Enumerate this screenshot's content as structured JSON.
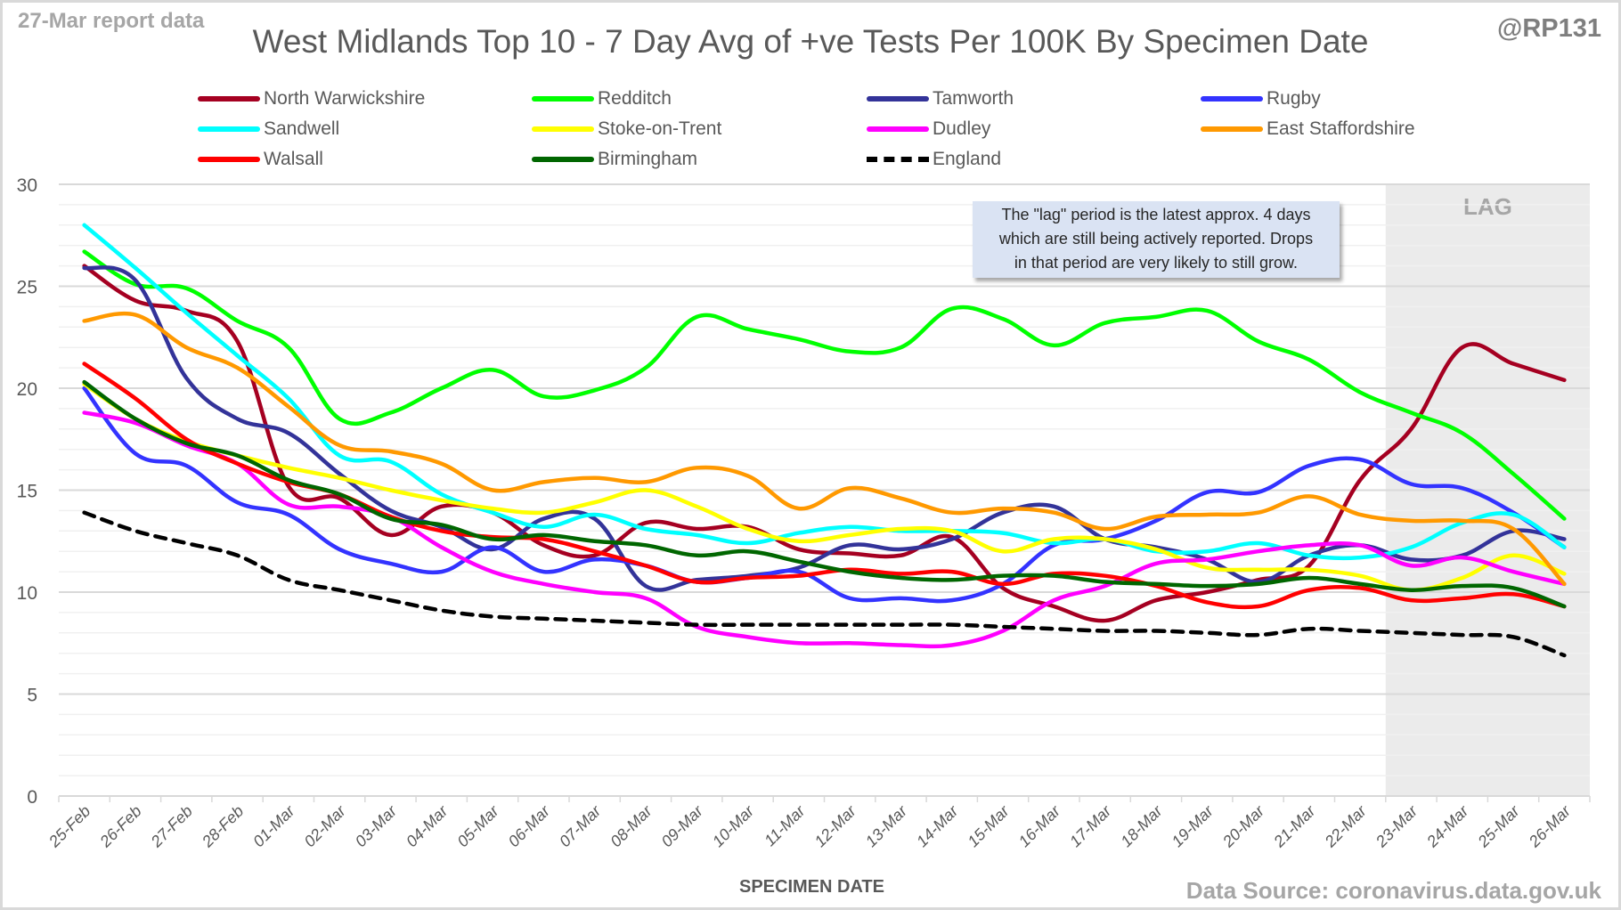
{
  "header": {
    "report_label": "27-Mar report data",
    "handle": "@RP131",
    "title": "West Midlands Top 10 - 7 Day Avg of +ve Tests Per 100K By Specimen Date"
  },
  "annotation": {
    "lines": [
      "The \"lag\" period is the latest approx. 4 days",
      "which are still being actively reported.  Drops",
      "in that period are very likely to still grow."
    ],
    "lag_label": "LAG"
  },
  "footer": {
    "source": "Data Source: coronavirus.data.gov.uk"
  },
  "chart_data": {
    "type": "line",
    "title": "West Midlands Top 10 - 7 Day Avg of +ve Tests Per 100K By Specimen Date",
    "xlabel": "SPECIMEN DATE",
    "ylabel": "",
    "ylim": [
      0,
      30
    ],
    "yticks": [
      0,
      5,
      10,
      15,
      20,
      25,
      30
    ],
    "grid": true,
    "legend_position": "top",
    "lag_period": {
      "start": "23-Mar",
      "end": "26-Mar",
      "label": "LAG"
    },
    "categories": [
      "25-Feb",
      "26-Feb",
      "27-Feb",
      "28-Feb",
      "01-Mar",
      "02-Mar",
      "03-Mar",
      "04-Mar",
      "05-Mar",
      "06-Mar",
      "07-Mar",
      "08-Mar",
      "09-Mar",
      "10-Mar",
      "11-Mar",
      "12-Mar",
      "13-Mar",
      "14-Mar",
      "15-Mar",
      "16-Mar",
      "17-Mar",
      "18-Mar",
      "19-Mar",
      "20-Mar",
      "21-Mar",
      "22-Mar",
      "23-Mar",
      "24-Mar",
      "25-Mar",
      "26-Mar"
    ],
    "series": [
      {
        "name": "North Warwickshire",
        "color": "#a50021",
        "dashed": false,
        "values": [
          26.0,
          24.3,
          23.8,
          22.3,
          15.2,
          14.6,
          12.8,
          14.2,
          13.9,
          12.3,
          11.8,
          13.4,
          13.1,
          13.2,
          12.1,
          11.9,
          11.8,
          12.7,
          10.2,
          9.3,
          8.6,
          9.6,
          10.0,
          10.6,
          11.3,
          15.5,
          18.0,
          22.0,
          21.2,
          20.4
        ]
      },
      {
        "name": "Redditch",
        "color": "#00ff00",
        "dashed": false,
        "values": [
          26.7,
          25.1,
          24.9,
          23.3,
          22.0,
          18.5,
          18.8,
          20.0,
          20.9,
          19.6,
          19.9,
          21.0,
          23.5,
          22.9,
          22.4,
          21.8,
          22.0,
          23.9,
          23.4,
          22.1,
          23.2,
          23.5,
          23.8,
          22.3,
          21.4,
          19.8,
          18.8,
          17.8,
          15.8,
          13.6
        ]
      },
      {
        "name": "Tamworth",
        "color": "#333399",
        "dashed": false,
        "values": [
          25.9,
          25.3,
          20.5,
          18.5,
          17.8,
          15.8,
          14.0,
          13.2,
          12.1,
          13.6,
          13.6,
          10.3,
          10.6,
          10.8,
          11.2,
          12.3,
          12.1,
          12.6,
          13.9,
          14.2,
          12.6,
          12.2,
          11.6,
          10.5,
          11.8,
          12.3,
          11.6,
          11.8,
          13.0,
          12.6
        ]
      },
      {
        "name": "Rugby",
        "color": "#3333ff",
        "dashed": false,
        "values": [
          20.0,
          16.8,
          16.2,
          14.4,
          13.8,
          12.1,
          11.4,
          11.0,
          12.2,
          11.0,
          11.6,
          11.3,
          10.5,
          10.7,
          11.0,
          9.7,
          9.7,
          9.6,
          10.4,
          12.3,
          12.6,
          13.5,
          14.9,
          14.9,
          16.2,
          16.5,
          15.3,
          15.1,
          13.9,
          12.2
        ]
      },
      {
        "name": "Sandwell",
        "color": "#00ffff",
        "dashed": false,
        "values": [
          28.0,
          25.9,
          23.7,
          21.6,
          19.5,
          16.7,
          16.4,
          14.8,
          13.9,
          13.2,
          13.8,
          13.1,
          12.8,
          12.4,
          12.9,
          13.2,
          13.0,
          13.0,
          12.9,
          12.4,
          12.6,
          12.0,
          12.0,
          12.4,
          11.8,
          11.7,
          12.2,
          13.4,
          13.8,
          12.2
        ]
      },
      {
        "name": "Stoke-on-Trent",
        "color": "#ffff00",
        "dashed": false,
        "values": [
          20.2,
          18.5,
          17.4,
          16.7,
          16.1,
          15.6,
          15.0,
          14.5,
          14.1,
          13.9,
          14.4,
          15.0,
          14.2,
          13.1,
          12.5,
          12.8,
          13.1,
          13.0,
          12.0,
          12.6,
          12.6,
          12.1,
          11.2,
          11.1,
          11.1,
          10.8,
          10.1,
          10.7,
          11.8,
          10.9
        ]
      },
      {
        "name": "Dudley",
        "color": "#ff00ff",
        "dashed": false,
        "values": [
          18.8,
          18.3,
          17.2,
          16.3,
          14.3,
          14.2,
          13.7,
          12.2,
          11.0,
          10.4,
          10.0,
          9.7,
          8.3,
          7.8,
          7.5,
          7.5,
          7.4,
          7.4,
          8.1,
          9.6,
          10.3,
          11.4,
          11.6,
          12.0,
          12.3,
          12.3,
          11.3,
          11.7,
          11.0,
          10.4
        ]
      },
      {
        "name": "East Staffordshire",
        "color": "#ff9900",
        "dashed": false,
        "values": [
          23.3,
          23.6,
          22.0,
          21.0,
          19.1,
          17.2,
          16.9,
          16.3,
          15.0,
          15.4,
          15.6,
          15.4,
          16.1,
          15.7,
          14.1,
          15.1,
          14.6,
          13.9,
          14.1,
          13.9,
          13.1,
          13.7,
          13.8,
          13.9,
          14.7,
          13.8,
          13.5,
          13.5,
          13.1,
          10.4
        ]
      },
      {
        "name": "Walsall",
        "color": "#ff0000",
        "dashed": false,
        "values": [
          21.2,
          19.5,
          17.5,
          16.3,
          15.4,
          14.8,
          13.7,
          13.0,
          12.7,
          12.6,
          12.0,
          11.3,
          10.5,
          10.7,
          10.8,
          11.1,
          10.9,
          11.0,
          10.4,
          10.9,
          10.8,
          10.3,
          9.5,
          9.3,
          10.1,
          10.2,
          9.6,
          9.7,
          9.9,
          9.3
        ]
      },
      {
        "name": "Birmingham",
        "color": "#006600",
        "dashed": false,
        "values": [
          20.3,
          18.5,
          17.3,
          16.7,
          15.5,
          14.8,
          13.6,
          13.3,
          12.6,
          12.8,
          12.5,
          12.3,
          11.8,
          12.0,
          11.5,
          11.0,
          10.7,
          10.6,
          10.8,
          10.8,
          10.5,
          10.4,
          10.3,
          10.4,
          10.7,
          10.4,
          10.1,
          10.3,
          10.2,
          9.3
        ]
      },
      {
        "name": "England",
        "color": "#000000",
        "dashed": true,
        "values": [
          13.9,
          13.0,
          12.4,
          11.8,
          10.6,
          10.1,
          9.6,
          9.1,
          8.8,
          8.7,
          8.6,
          8.5,
          8.4,
          8.4,
          8.4,
          8.4,
          8.4,
          8.4,
          8.3,
          8.2,
          8.1,
          8.1,
          8.0,
          7.9,
          8.2,
          8.1,
          8.0,
          7.9,
          7.8,
          6.9
        ]
      }
    ]
  }
}
